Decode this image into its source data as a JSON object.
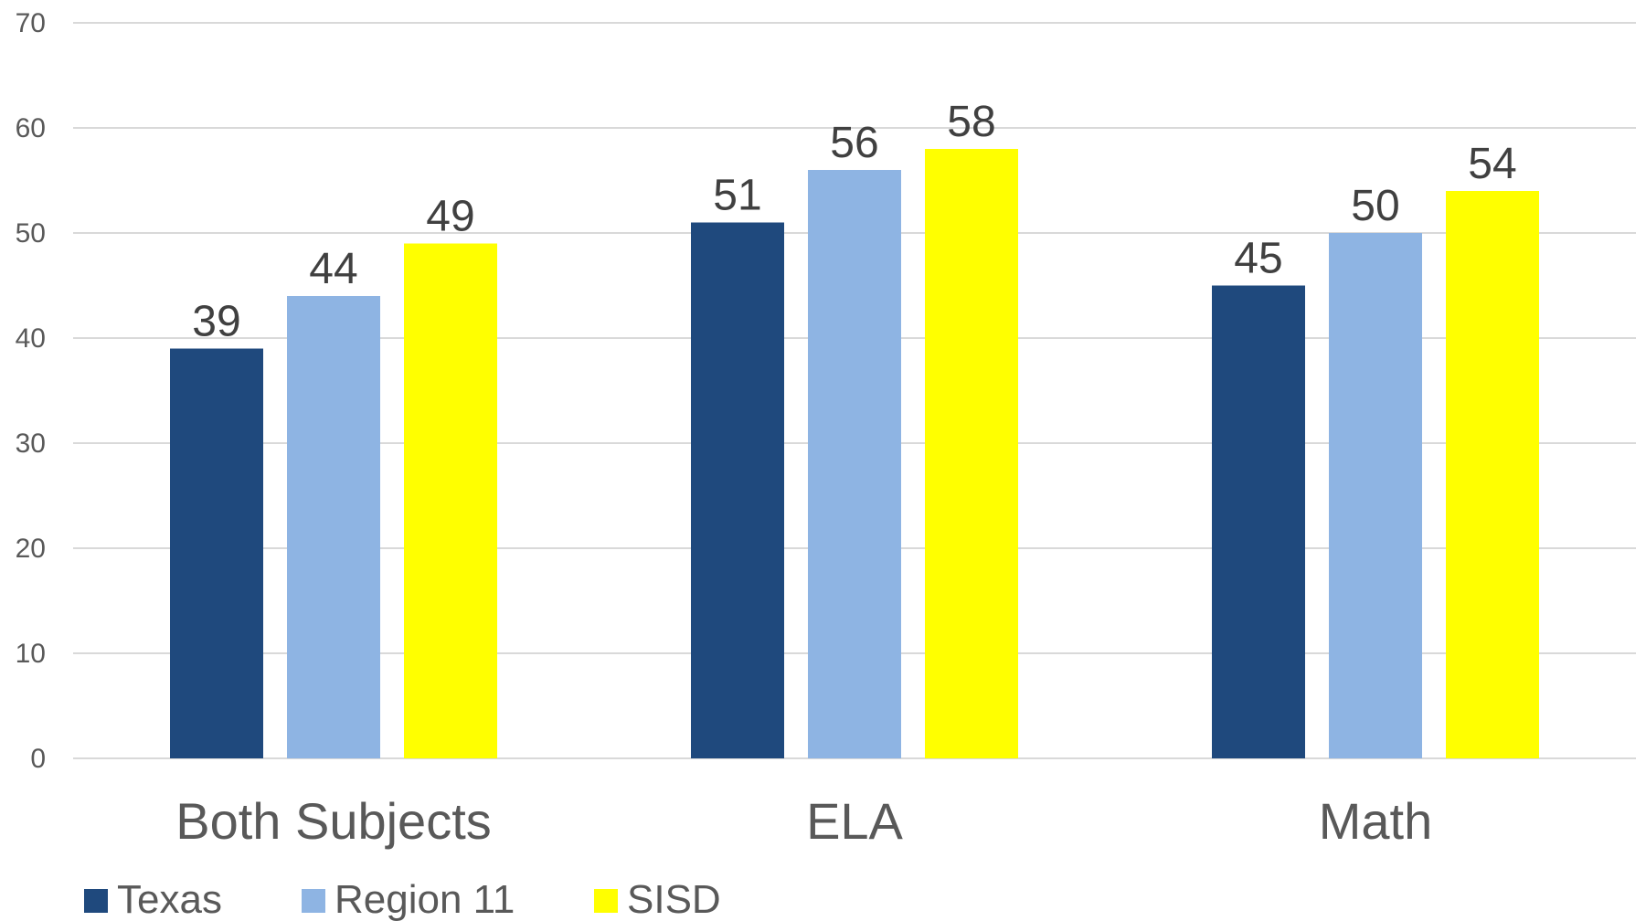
{
  "chart_data": {
    "type": "bar",
    "title": "",
    "xlabel": "",
    "ylabel": "",
    "ylim": [
      0,
      70
    ],
    "yticks": [
      0,
      10,
      20,
      30,
      40,
      50,
      60,
      70
    ],
    "grid": true,
    "legend_position": "bottom-left",
    "data_labels": true,
    "categories": [
      "Both Subjects",
      "ELA",
      "Math"
    ],
    "series": [
      {
        "name": "Texas",
        "color": "#1f497d",
        "values": [
          39,
          51,
          45
        ]
      },
      {
        "name": "Region 11",
        "color": "#8eb4e3",
        "values": [
          44,
          56,
          50
        ]
      },
      {
        "name": "SISD",
        "color": "#ffff00",
        "values": [
          49,
          58,
          54
        ]
      }
    ]
  }
}
